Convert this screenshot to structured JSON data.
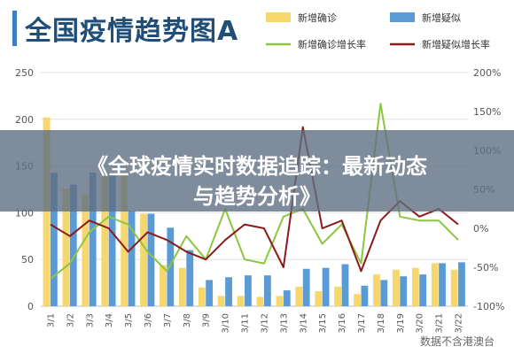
{
  "title": "全国疫情趋势图A",
  "banner": {
    "line1": "《全球疫情实时数据追踪：最新动态",
    "line2": "与趋势分析》"
  },
  "watermark": "数据不含港澳台",
  "colors": {
    "bar_confirmed": "#f5d76e",
    "bar_suspected": "#5b9bd5",
    "line_confirmed_growth": "#8dc63f",
    "line_suspected_growth": "#8b1a1a",
    "title": "#1f4e79"
  },
  "chart_data": {
    "type": "bar",
    "categories": [
      "3/1",
      "3/2",
      "3/3",
      "3/4",
      "3/5",
      "3/6",
      "3/7",
      "3/8",
      "3/9",
      "3/10",
      "3/11",
      "3/12",
      "3/13",
      "3/14",
      "3/15",
      "3/16",
      "3/17",
      "3/18",
      "3/19",
      "3/20",
      "3/21",
      "3/22"
    ],
    "series": [
      {
        "name": "新增确诊",
        "kind": "bar",
        "axis": "left",
        "values": [
          202,
          126,
          119,
          139,
          143,
          99,
          44,
          41,
          20,
          11,
          11,
          10,
          11,
          21,
          16,
          21,
          13,
          34,
          39,
          41,
          46,
          39
        ]
      },
      {
        "name": "新增疑似",
        "kind": "bar",
        "axis": "left",
        "values": [
          143,
          130,
          143,
          143,
          102,
          99,
          84,
          60,
          28,
          31,
          33,
          33,
          17,
          40,
          41,
          45,
          22,
          28,
          32,
          34,
          46,
          47
        ]
      },
      {
        "name": "新增确诊增长率",
        "kind": "line",
        "axis": "right",
        "values": [
          -65,
          -45,
          -5,
          15,
          5,
          -30,
          -55,
          -10,
          -40,
          25,
          -40,
          -45,
          15,
          25,
          -20,
          5,
          -45,
          160,
          15,
          10,
          10,
          -15
        ]
      },
      {
        "name": "新增疑似增长率",
        "kind": "line",
        "axis": "right",
        "values": [
          5,
          -10,
          10,
          0,
          -30,
          -5,
          -15,
          -30,
          -40,
          -15,
          5,
          0,
          -50,
          130,
          0,
          10,
          -55,
          10,
          35,
          15,
          25,
          5
        ]
      }
    ],
    "ylim_left": [
      0,
      250
    ],
    "ylim_right": [
      -100,
      200
    ],
    "left_ticks": [
      0,
      50,
      100,
      150,
      200,
      250
    ],
    "right_ticks": [
      "-100%",
      "-50%",
      "0%",
      "50%",
      "100%",
      "150%",
      "200%"
    ],
    "legend_position": "top-right",
    "grid": true
  }
}
